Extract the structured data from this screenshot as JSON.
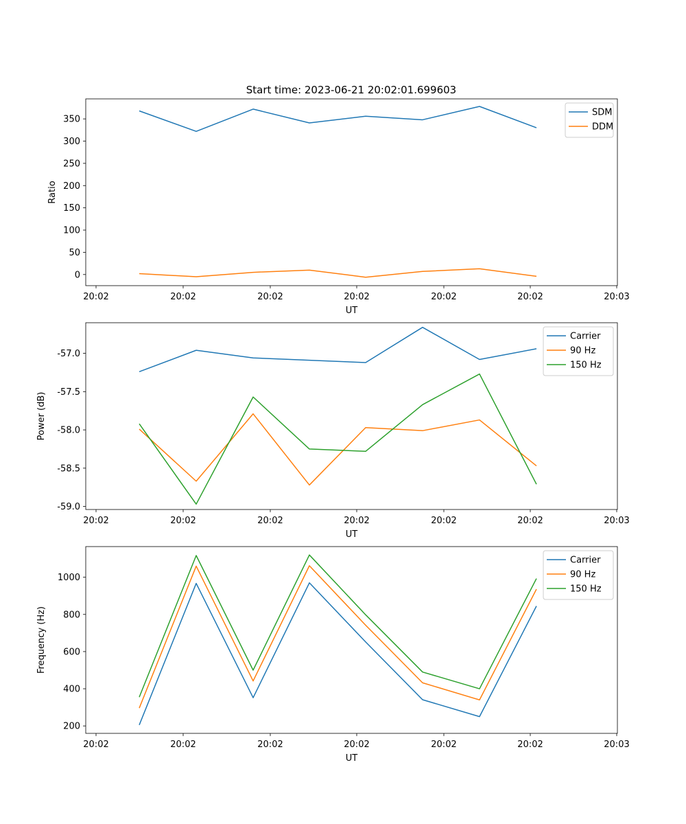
{
  "figure": {
    "title": "Start time: 2023-06-21 20:02:01.699603"
  },
  "chart_data": [
    {
      "type": "line",
      "xlabel": "UT",
      "ylabel": "Ratio",
      "x_ticks": [
        "20:02",
        "20:02",
        "20:02",
        "20:02",
        "20:02",
        "20:02",
        "20:03"
      ],
      "y_ticks": [
        0,
        50,
        100,
        150,
        200,
        250,
        300,
        350
      ],
      "ylim": [
        -25,
        395
      ],
      "grid": false,
      "legend_position": "top-right",
      "series": [
        {
          "name": "SDM",
          "color": "#1f77b4",
          "values": [
            368,
            322,
            372,
            341,
            356,
            348,
            378,
            330
          ]
        },
        {
          "name": "DDM",
          "color": "#ff7f0e",
          "values": [
            2,
            -5,
            5,
            10,
            -6,
            7,
            13,
            -4
          ]
        }
      ]
    },
    {
      "type": "line",
      "xlabel": "UT",
      "ylabel": "Power (dB)",
      "x_ticks": [
        "20:02",
        "20:02",
        "20:02",
        "20:02",
        "20:02",
        "20:02",
        "20:03"
      ],
      "y_ticks": [
        -59.0,
        -58.5,
        -58.0,
        -57.5,
        -57.0
      ],
      "ylim": [
        -59.04,
        -56.6
      ],
      "grid": false,
      "legend_position": "top-right",
      "series": [
        {
          "name": "Carrier",
          "color": "#1f77b4",
          "values": [
            -57.24,
            -56.96,
            -57.06,
            -57.09,
            -57.12,
            -56.66,
            -57.08,
            -56.94
          ]
        },
        {
          "name": "90 Hz",
          "color": "#ff7f0e",
          "values": [
            -57.99,
            -58.67,
            -57.79,
            -58.72,
            -57.97,
            -58.01,
            -57.87,
            -58.47
          ]
        },
        {
          "name": "150 Hz",
          "color": "#2ca02c",
          "values": [
            -57.92,
            -58.97,
            -57.57,
            -58.25,
            -58.28,
            -57.67,
            -57.27,
            -58.71
          ]
        }
      ]
    },
    {
      "type": "line",
      "xlabel": "UT",
      "ylabel": "Frequency (Hz)",
      "x_ticks": [
        "20:02",
        "20:02",
        "20:02",
        "20:02",
        "20:02",
        "20:02",
        "20:03"
      ],
      "y_ticks": [
        200,
        400,
        600,
        800,
        1000
      ],
      "ylim": [
        160,
        1165
      ],
      "grid": false,
      "legend_position": "top-right",
      "series": [
        {
          "name": "Carrier",
          "color": "#1f77b4",
          "values": [
            205,
            967,
            352,
            970,
            652,
            341,
            250,
            845
          ]
        },
        {
          "name": "90 Hz",
          "color": "#ff7f0e",
          "values": [
            296,
            1060,
            442,
            1062,
            742,
            432,
            340,
            936
          ]
        },
        {
          "name": "150 Hz",
          "color": "#2ca02c",
          "values": [
            355,
            1117,
            500,
            1120,
            798,
            490,
            400,
            993
          ]
        }
      ]
    }
  ]
}
